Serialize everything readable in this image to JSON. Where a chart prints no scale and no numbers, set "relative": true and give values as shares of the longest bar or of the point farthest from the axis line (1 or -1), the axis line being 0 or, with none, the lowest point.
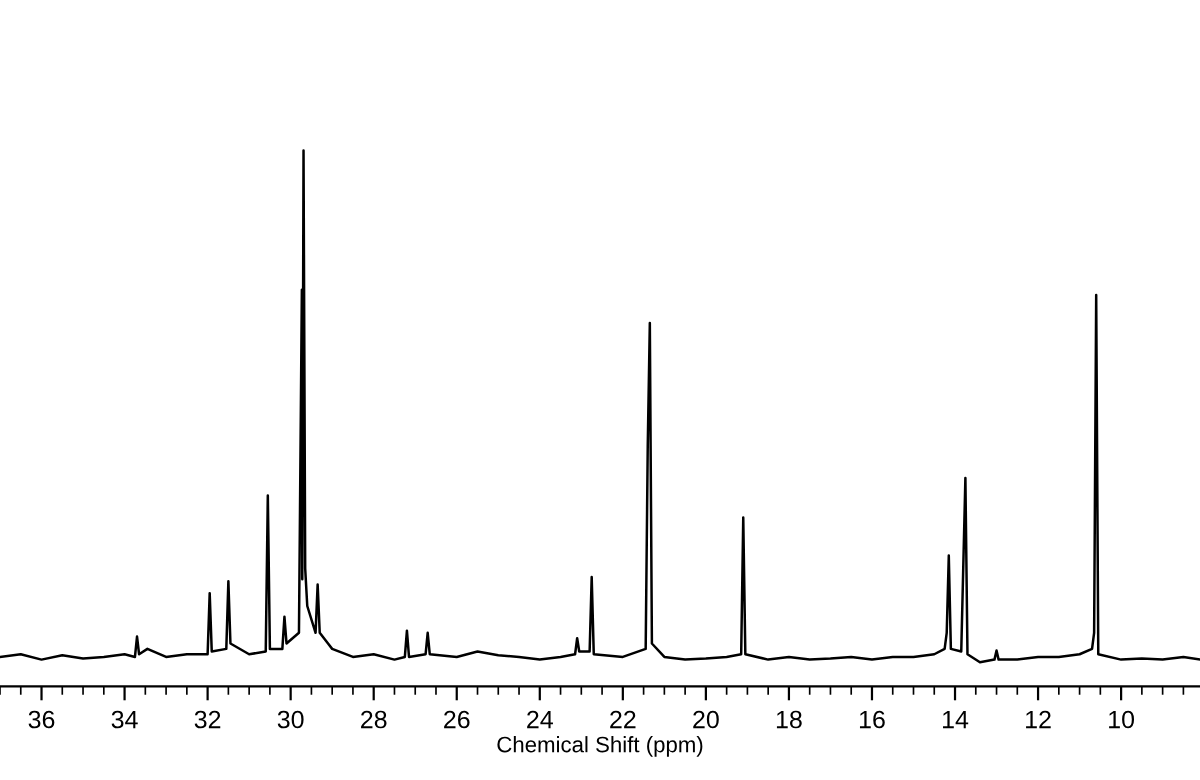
{
  "chart_data": {
    "type": "line",
    "xlabel": "Chemical Shift (ppm)",
    "relative": true,
    "grid": false,
    "legend": false,
    "marker": "none",
    "line_style": "solid",
    "xlim": [
      37.0,
      8.1
    ],
    "xticks": [
      36,
      34,
      32,
      30,
      28,
      26,
      24,
      22,
      20,
      18,
      16,
      14,
      12,
      10,
      {
        "value": 37,
        "label": null
      },
      {
        "value": 36.5,
        "label": null
      },
      {
        "value": 35.5,
        "label": null
      },
      {
        "value": 35,
        "label": null
      },
      {
        "value": 34.5,
        "label": null
      },
      {
        "value": 33.5,
        "label": null
      },
      {
        "value": 33,
        "label": null
      },
      {
        "value": 32.5,
        "label": null
      },
      {
        "value": 31.5,
        "label": null
      },
      {
        "value": 31,
        "label": null
      },
      {
        "value": 30.5,
        "label": null
      },
      {
        "value": 29.5,
        "label": null
      },
      {
        "value": 29,
        "label": null
      },
      {
        "value": 28.5,
        "label": null
      },
      {
        "value": 27.5,
        "label": null
      },
      {
        "value": 27,
        "label": null
      },
      {
        "value": 26.5,
        "label": null
      },
      {
        "value": 25.5,
        "label": null
      },
      {
        "value": 25,
        "label": null
      },
      {
        "value": 24.5,
        "label": null
      },
      {
        "value": 23.5,
        "label": null
      },
      {
        "value": 23,
        "label": null
      },
      {
        "value": 22.5,
        "label": null
      },
      {
        "value": 21.5,
        "label": null
      },
      {
        "value": 21,
        "label": null
      },
      {
        "value": 20.5,
        "label": null
      },
      {
        "value": 19.5,
        "label": null
      },
      {
        "value": 19,
        "label": null
      },
      {
        "value": 18.5,
        "label": null
      },
      {
        "value": 17.5,
        "label": null
      },
      {
        "value": 17,
        "label": null
      },
      {
        "value": 16.5,
        "label": null
      },
      {
        "value": 15.5,
        "label": null
      },
      {
        "value": 15,
        "label": null
      },
      {
        "value": 14.5,
        "label": null
      },
      {
        "value": 13.5,
        "label": null
      },
      {
        "value": 13,
        "label": null
      },
      {
        "value": 12.5,
        "label": null
      },
      {
        "value": 11.5,
        "label": null
      },
      {
        "value": 11,
        "label": null
      },
      {
        "value": 10.5,
        "label": null
      },
      {
        "value": 9.5,
        "label": null
      },
      {
        "value": 9,
        "label": null
      },
      {
        "value": 8.5,
        "label": null
      }
    ],
    "series": [
      {
        "color": "#000000",
        "x": [
          37.0,
          36.5,
          36.0,
          35.5,
          35.0,
          34.5,
          34.0,
          33.75,
          33.7,
          33.65,
          33.45,
          33.0,
          32.5,
          32.0,
          31.95,
          31.9,
          31.55,
          31.5,
          31.45,
          31.0,
          30.6,
          30.55,
          30.5,
          30.2,
          30.15,
          30.1,
          29.8,
          29.73,
          29.72,
          29.69,
          29.65,
          29.6,
          29.4,
          29.35,
          29.3,
          29.1,
          29.0,
          28.5,
          28.0,
          27.5,
          27.25,
          27.2,
          27.15,
          26.75,
          26.7,
          26.65,
          26.0,
          25.5,
          25.0,
          24.5,
          24.0,
          23.5,
          23.15,
          23.1,
          23.05,
          22.8,
          22.75,
          22.7,
          22.0,
          21.45,
          21.4,
          21.35,
          21.3,
          21.0,
          20.5,
          20.0,
          19.5,
          19.15,
          19.1,
          19.05,
          18.5,
          18.0,
          17.5,
          17.0,
          16.5,
          16.0,
          15.5,
          15.0,
          14.5,
          14.25,
          14.2,
          14.15,
          14.1,
          13.85,
          13.75,
          13.7,
          13.4,
          13.05,
          13.0,
          12.95,
          12.5,
          12.0,
          11.5,
          11.0,
          10.7,
          10.65,
          10.6,
          10.55,
          10.0,
          9.5,
          9.0,
          8.5,
          8.1
        ],
        "values": [
          0.055,
          0.06,
          0.05,
          0.058,
          0.052,
          0.055,
          0.06,
          0.055,
          0.093,
          0.06,
          0.07,
          0.055,
          0.06,
          0.06,
          0.174,
          0.065,
          0.07,
          0.196,
          0.08,
          0.06,
          0.065,
          0.356,
          0.07,
          0.07,
          0.13,
          0.08,
          0.1,
          0.74,
          0.2,
          1.0,
          0.22,
          0.15,
          0.1,
          0.19,
          0.1,
          0.08,
          0.07,
          0.055,
          0.06,
          0.05,
          0.055,
          0.104,
          0.055,
          0.06,
          0.1,
          0.06,
          0.055,
          0.065,
          0.058,
          0.055,
          0.05,
          0.055,
          0.06,
          0.09,
          0.065,
          0.065,
          0.204,
          0.06,
          0.055,
          0.07,
          0.45,
          0.678,
          0.08,
          0.055,
          0.05,
          0.052,
          0.055,
          0.06,
          0.315,
          0.06,
          0.05,
          0.055,
          0.05,
          0.052,
          0.055,
          0.05,
          0.055,
          0.055,
          0.06,
          0.07,
          0.1,
          0.244,
          0.07,
          0.065,
          0.389,
          0.06,
          0.045,
          0.05,
          0.067,
          0.05,
          0.05,
          0.055,
          0.055,
          0.06,
          0.07,
          0.1,
          0.73,
          0.06,
          0.05,
          0.052,
          0.05,
          0.055,
          0.05
        ]
      }
    ]
  }
}
